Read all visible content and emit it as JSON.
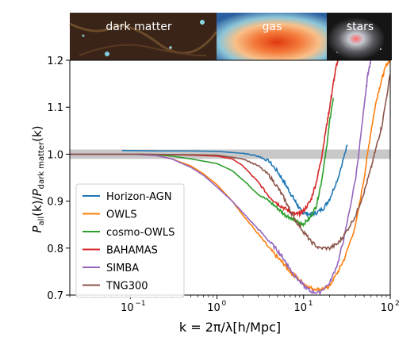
{
  "chart_data": {
    "type": "line",
    "xlabel": "k = 2π/λ[h/Mpc]",
    "ylabel": "P_all(k)/P_dark matter(k)",
    "xscale": "log",
    "xlim": [
      0.02,
      100
    ],
    "ylim": [
      0.7,
      1.2
    ],
    "yticks": [
      0.7,
      0.8,
      0.9,
      1.0,
      1.1,
      1.2
    ],
    "ytick_labels": [
      "0.7",
      "0.8",
      "0.9",
      "1.0",
      "1.1",
      "1.2"
    ],
    "xticks": [
      0.1,
      1,
      10,
      100
    ],
    "xtick_labels": [
      "10−1",
      "100",
      "101",
      "102"
    ],
    "grid": false,
    "legend_position": "lower-left",
    "band": {
      "ymin": 0.99,
      "ymax": 1.01,
      "color": "#c8c8c8"
    },
    "image_strip": [
      {
        "label": "dark matter",
        "kind": "dark-matter"
      },
      {
        "label": "gas",
        "kind": "gas"
      },
      {
        "label": "stars",
        "kind": "stars"
      }
    ],
    "series": [
      {
        "name": "Horizon-AGN",
        "color": "#1f77b4",
        "x": [
          0.08,
          0.2,
          0.5,
          1,
          2,
          3,
          4,
          5,
          6,
          7,
          8,
          9,
          10,
          12,
          14,
          17,
          20,
          25,
          32
        ],
        "y": [
          1.008,
          1.007,
          1.007,
          1.006,
          1.002,
          0.996,
          0.985,
          0.963,
          0.94,
          0.918,
          0.9,
          0.883,
          0.875,
          0.872,
          0.875,
          0.885,
          0.905,
          0.95,
          1.02
        ]
      },
      {
        "name": "OWLS",
        "color": "#ff7f0e",
        "x": [
          0.02,
          0.1,
          0.2,
          0.3,
          0.5,
          0.7,
          1,
          1.5,
          2,
          3,
          4,
          5,
          6,
          7,
          8,
          10,
          12,
          15,
          18,
          20,
          25,
          30,
          40,
          50,
          60,
          70,
          80,
          90,
          100
        ],
        "y": [
          1.0,
          1.0,
          0.998,
          0.99,
          0.975,
          0.958,
          0.935,
          0.9,
          0.87,
          0.83,
          0.8,
          0.78,
          0.765,
          0.75,
          0.74,
          0.725,
          0.715,
          0.712,
          0.715,
          0.72,
          0.75,
          0.78,
          0.85,
          0.95,
          1.05,
          1.12,
          1.16,
          1.19,
          1.2
        ]
      },
      {
        "name": "cosmo-OWLS",
        "color": "#2ca02c",
        "x": [
          0.02,
          0.1,
          0.2,
          0.3,
          0.5,
          1,
          1.5,
          2,
          3,
          4,
          5,
          6,
          7,
          8,
          9,
          10,
          12,
          14,
          16,
          18,
          20,
          22
        ],
        "y": [
          1.0,
          1.0,
          0.999,
          0.996,
          0.99,
          0.98,
          0.965,
          0.945,
          0.915,
          0.9,
          0.885,
          0.872,
          0.865,
          0.858,
          0.852,
          0.852,
          0.865,
          0.89,
          0.94,
          1.0,
          1.07,
          1.12
        ]
      },
      {
        "name": "BAHAMAS",
        "color": "#d62728",
        "x": [
          0.02,
          0.1,
          0.3,
          0.5,
          1,
          1.5,
          2,
          3,
          4,
          5,
          6,
          7,
          8,
          9,
          10,
          12,
          14,
          16,
          18,
          20,
          22,
          24,
          25
        ],
        "y": [
          1.0,
          1.0,
          0.999,
          0.998,
          0.996,
          0.99,
          0.975,
          0.94,
          0.91,
          0.895,
          0.885,
          0.877,
          0.872,
          0.873,
          0.88,
          0.9,
          0.94,
          0.99,
          1.05,
          1.1,
          1.15,
          1.19,
          1.2
        ]
      },
      {
        "name": "SIMBA",
        "color": "#9467bd",
        "x": [
          0.02,
          0.1,
          0.2,
          0.3,
          0.5,
          0.7,
          1,
          1.5,
          2,
          3,
          4,
          5,
          6,
          7,
          8,
          10,
          12,
          15,
          20,
          25,
          30,
          40,
          50,
          55,
          60
        ],
        "y": [
          1.0,
          1.0,
          0.997,
          0.99,
          0.972,
          0.955,
          0.93,
          0.9,
          0.875,
          0.84,
          0.815,
          0.795,
          0.775,
          0.755,
          0.74,
          0.72,
          0.708,
          0.705,
          0.725,
          0.77,
          0.83,
          0.95,
          1.1,
          1.17,
          1.2
        ]
      },
      {
        "name": "TNG300",
        "color": "#8c564b",
        "x": [
          0.02,
          0.1,
          0.5,
          1,
          2,
          3,
          4,
          5,
          6,
          7,
          8,
          10,
          12,
          15,
          20,
          25,
          30,
          40,
          50,
          60,
          70,
          80,
          100
        ],
        "y": [
          1.0,
          1.0,
          0.999,
          0.998,
          0.99,
          0.975,
          0.955,
          0.93,
          0.905,
          0.88,
          0.86,
          0.835,
          0.815,
          0.8,
          0.8,
          0.81,
          0.83,
          0.87,
          0.92,
          0.97,
          1.02,
          1.06,
          1.17
        ]
      }
    ]
  }
}
